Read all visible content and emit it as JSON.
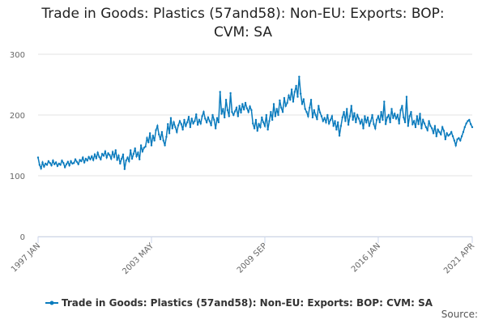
{
  "chart_data": {
    "type": "line",
    "title": "Trade in Goods: Plastics (57and58): Non-EU: Exports: BOP: CVM: SA",
    "source": "Source:",
    "ylim": [
      0,
      300
    ],
    "yticks": [
      0,
      100,
      200,
      300
    ],
    "grid": true,
    "legend": "bottom",
    "categories": [
      "1997 JAN",
      null,
      null,
      null,
      null,
      null,
      null,
      null,
      null,
      null,
      null,
      null,
      null,
      null,
      null,
      null,
      null,
      null,
      null,
      null,
      null,
      null,
      null,
      null,
      null,
      null,
      null,
      null,
      null,
      null,
      null,
      null,
      null,
      null,
      null,
      null,
      null,
      null,
      null,
      null,
      null,
      null,
      null,
      null,
      null,
      null,
      null,
      null,
      null,
      null,
      null,
      null,
      null,
      null,
      null,
      null,
      null,
      null,
      null,
      null,
      null,
      null,
      null,
      null,
      null,
      null,
      null,
      null,
      null,
      null,
      null,
      null,
      null,
      null,
      null,
      null,
      "2003 MAY",
      null,
      null,
      null,
      null,
      null,
      null,
      null,
      null,
      null,
      null,
      null,
      null,
      null,
      null,
      null,
      null,
      null,
      null,
      null,
      null,
      null,
      null,
      null,
      null,
      null,
      null,
      null,
      null,
      null,
      null,
      null,
      null,
      null,
      null,
      null,
      null,
      null,
      null,
      null,
      null,
      null,
      null,
      null,
      null,
      null,
      null,
      null,
      null,
      null,
      null,
      null,
      null,
      null,
      null,
      null,
      null,
      null,
      null,
      null,
      null,
      null,
      null,
      null,
      null,
      null,
      null,
      null,
      null,
      null,
      null,
      null,
      null,
      null,
      null,
      null,
      "2009 SEP",
      null,
      null,
      null,
      null,
      null,
      null,
      null,
      null,
      null,
      null,
      null,
      null,
      null,
      null,
      null,
      null,
      null,
      null,
      null,
      null,
      null,
      null,
      null,
      null,
      null,
      null,
      null,
      null,
      null,
      null,
      null,
      null,
      null,
      null,
      null,
      null,
      null,
      null,
      null,
      null,
      null,
      null,
      null,
      null,
      null,
      null,
      null,
      null,
      null,
      null,
      null,
      null,
      null,
      null,
      null,
      null,
      null,
      null,
      null,
      null,
      null,
      null,
      null,
      null,
      null,
      null,
      null,
      null,
      null,
      null,
      null,
      null,
      null,
      null,
      null,
      "2016 JAN",
      null,
      null,
      null,
      null,
      null,
      null,
      null,
      null,
      null,
      null,
      null,
      null,
      null,
      null,
      null,
      null,
      null,
      null,
      null,
      null,
      null,
      null,
      null,
      null,
      null,
      null,
      null,
      null,
      null,
      null,
      null,
      null,
      null,
      null,
      null,
      null,
      null,
      null,
      null,
      null,
      null,
      null,
      null,
      null,
      null,
      null,
      null,
      null,
      null,
      null,
      null,
      null,
      null,
      null,
      null,
      null,
      null,
      null,
      null,
      null,
      null,
      null,
      "2021 APR"
    ],
    "series": [
      {
        "name": "Trade in Goods: Plastics (57and58): Non-EU: Exports: BOP: CVM: SA",
        "color": "#0a7bbd",
        "values": [
          130,
          118,
          112,
          122,
          115,
          120,
          118,
          124,
          121,
          117,
          125,
          119,
          122,
          116,
          120,
          118,
          125,
          121,
          114,
          119,
          123,
          117,
          124,
          120,
          121,
          127,
          123,
          119,
          126,
          124,
          130,
          122,
          128,
          125,
          131,
          127,
          132,
          126,
          135,
          129,
          138,
          131,
          127,
          136,
          133,
          140,
          130,
          137,
          134,
          128,
          139,
          131,
          142,
          126,
          133,
          120,
          128,
          135,
          111,
          125,
          130,
          124,
          142,
          128,
          136,
          145,
          132,
          138,
          127,
          150,
          140,
          146,
          148,
          162,
          155,
          170,
          150,
          166,
          158,
          175,
          182,
          168,
          160,
          172,
          158,
          150,
          164,
          185,
          170,
          195,
          178,
          188,
          180,
          172,
          183,
          190,
          185,
          176,
          192,
          182,
          188,
          197,
          180,
          194,
          186,
          190,
          201,
          184,
          192,
          186,
          198,
          205,
          194,
          188,
          196,
          190,
          183,
          200,
          192,
          178,
          195,
          188,
          238,
          202,
          210,
          196,
          225,
          208,
          198,
          236,
          205,
          200,
          206,
          212,
          198,
          215,
          204,
          218,
          209,
          220,
          211,
          205,
          214,
          208,
          186,
          178,
          192,
          174,
          185,
          180,
          196,
          188,
          182,
          200,
          176,
          190,
          205,
          192,
          218,
          198,
          210,
          200,
          224,
          212,
          205,
          228,
          215,
          220,
          232,
          225,
          242,
          222,
          238,
          248,
          230,
          263,
          235,
          218,
          226,
          210,
          205,
          198,
          212,
          225,
          196,
          208,
          200,
          193,
          215,
          204,
          198,
          190,
          195,
          188,
          200,
          186,
          192,
          198,
          182,
          190,
          176,
          188,
          166,
          182,
          196,
          205,
          190,
          210,
          184,
          198,
          215,
          192,
          203,
          188,
          200,
          194,
          186,
          192,
          178,
          198,
          188,
          196,
          182,
          190,
          200,
          185,
          178,
          192,
          198,
          188,
          205,
          192,
          222,
          185,
          196,
          200,
          188,
          210,
          195,
          202,
          194,
          200,
          186,
          208,
          215,
          196,
          188,
          230,
          182,
          198,
          205,
          185,
          190,
          180,
          198,
          185,
          202,
          178,
          192,
          186,
          180,
          175,
          190,
          182,
          178,
          170,
          182,
          165,
          176,
          172,
          168,
          180,
          174,
          160,
          170,
          166,
          168,
          172,
          165,
          158,
          150,
          160,
          162,
          158,
          165,
          172,
          180,
          186,
          190,
          192,
          185,
          180
        ]
      }
    ]
  }
}
